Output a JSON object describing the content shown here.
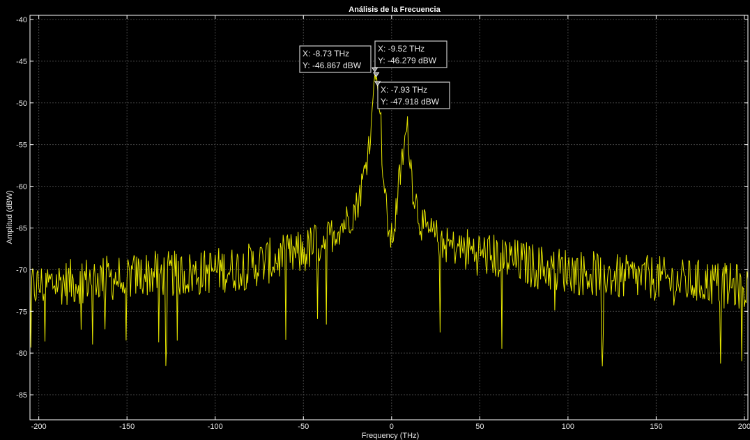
{
  "chart_data": {
    "type": "line",
    "title": "Análisis de la Frecuencia",
    "xlabel": "Frequency (THz)",
    "ylabel": "Amplitud (dBW)",
    "xlim": [
      -205,
      202
    ],
    "ylim": [
      -88,
      -39.5
    ],
    "xticks": [
      -200,
      -150,
      -100,
      -50,
      0,
      50,
      100,
      150,
      200
    ],
    "yticks": [
      -40,
      -45,
      -50,
      -55,
      -60,
      -65,
      -70,
      -75,
      -80,
      -85
    ],
    "grid": true,
    "colors": {
      "background": "#000000",
      "axes": "#ffffff",
      "grid": "#444444",
      "line": "#e6e600",
      "tooltip_border": "#cccccc"
    },
    "series": [
      {
        "color": "#e6e600",
        "x": [
          -205,
          -200,
          -190,
          -180,
          -170,
          -160,
          -150,
          -140,
          -130,
          -120,
          -110,
          -100,
          -90,
          -80,
          -70,
          -60,
          -50,
          -40,
          -35,
          -30,
          -25,
          -20,
          -17,
          -15,
          -13,
          -11,
          -9.52,
          -8.73,
          -7.93,
          -6,
          -5,
          -3,
          -1,
          0,
          2,
          4,
          6,
          8,
          9,
          10,
          12,
          14,
          16,
          20,
          25,
          30,
          40,
          50,
          60,
          70,
          80,
          90,
          100,
          110,
          120,
          130,
          140,
          150,
          160,
          170,
          180,
          190,
          200,
          202
        ],
        "y": [
          -72,
          -72,
          -71.5,
          -71.5,
          -71,
          -71,
          -71,
          -70.5,
          -70.5,
          -70.5,
          -70.5,
          -70,
          -70,
          -69.5,
          -69,
          -68.5,
          -68,
          -66.5,
          -66,
          -65,
          -64,
          -62.5,
          -60,
          -58,
          -55,
          -51,
          -46.279,
          -46.867,
          -47.918,
          -53,
          -58,
          -63,
          -66,
          -66.5,
          -64,
          -60,
          -57,
          -54,
          -53.5,
          -55,
          -60,
          -62,
          -64,
          -65.5,
          -66,
          -67,
          -67.5,
          -68,
          -68.5,
          -69,
          -69.5,
          -70,
          -70,
          -70.5,
          -70.5,
          -71,
          -71,
          -71,
          -71.5,
          -71.5,
          -71.5,
          -72,
          -72,
          -72
        ]
      }
    ],
    "annotations": [
      {
        "x_label": "X: -8.73 THz",
        "y_label": "Y: -46.867 dBW",
        "x": -8.73,
        "y": -46.867
      },
      {
        "x_label": "X: -9.52 THz",
        "y_label": "Y: -46.279 dBW",
        "x": -9.52,
        "y": -46.279
      },
      {
        "x_label": "X: -7.93 THz",
        "y_label": "Y: -47.918 dBW",
        "x": -7.93,
        "y": -47.918
      }
    ]
  }
}
